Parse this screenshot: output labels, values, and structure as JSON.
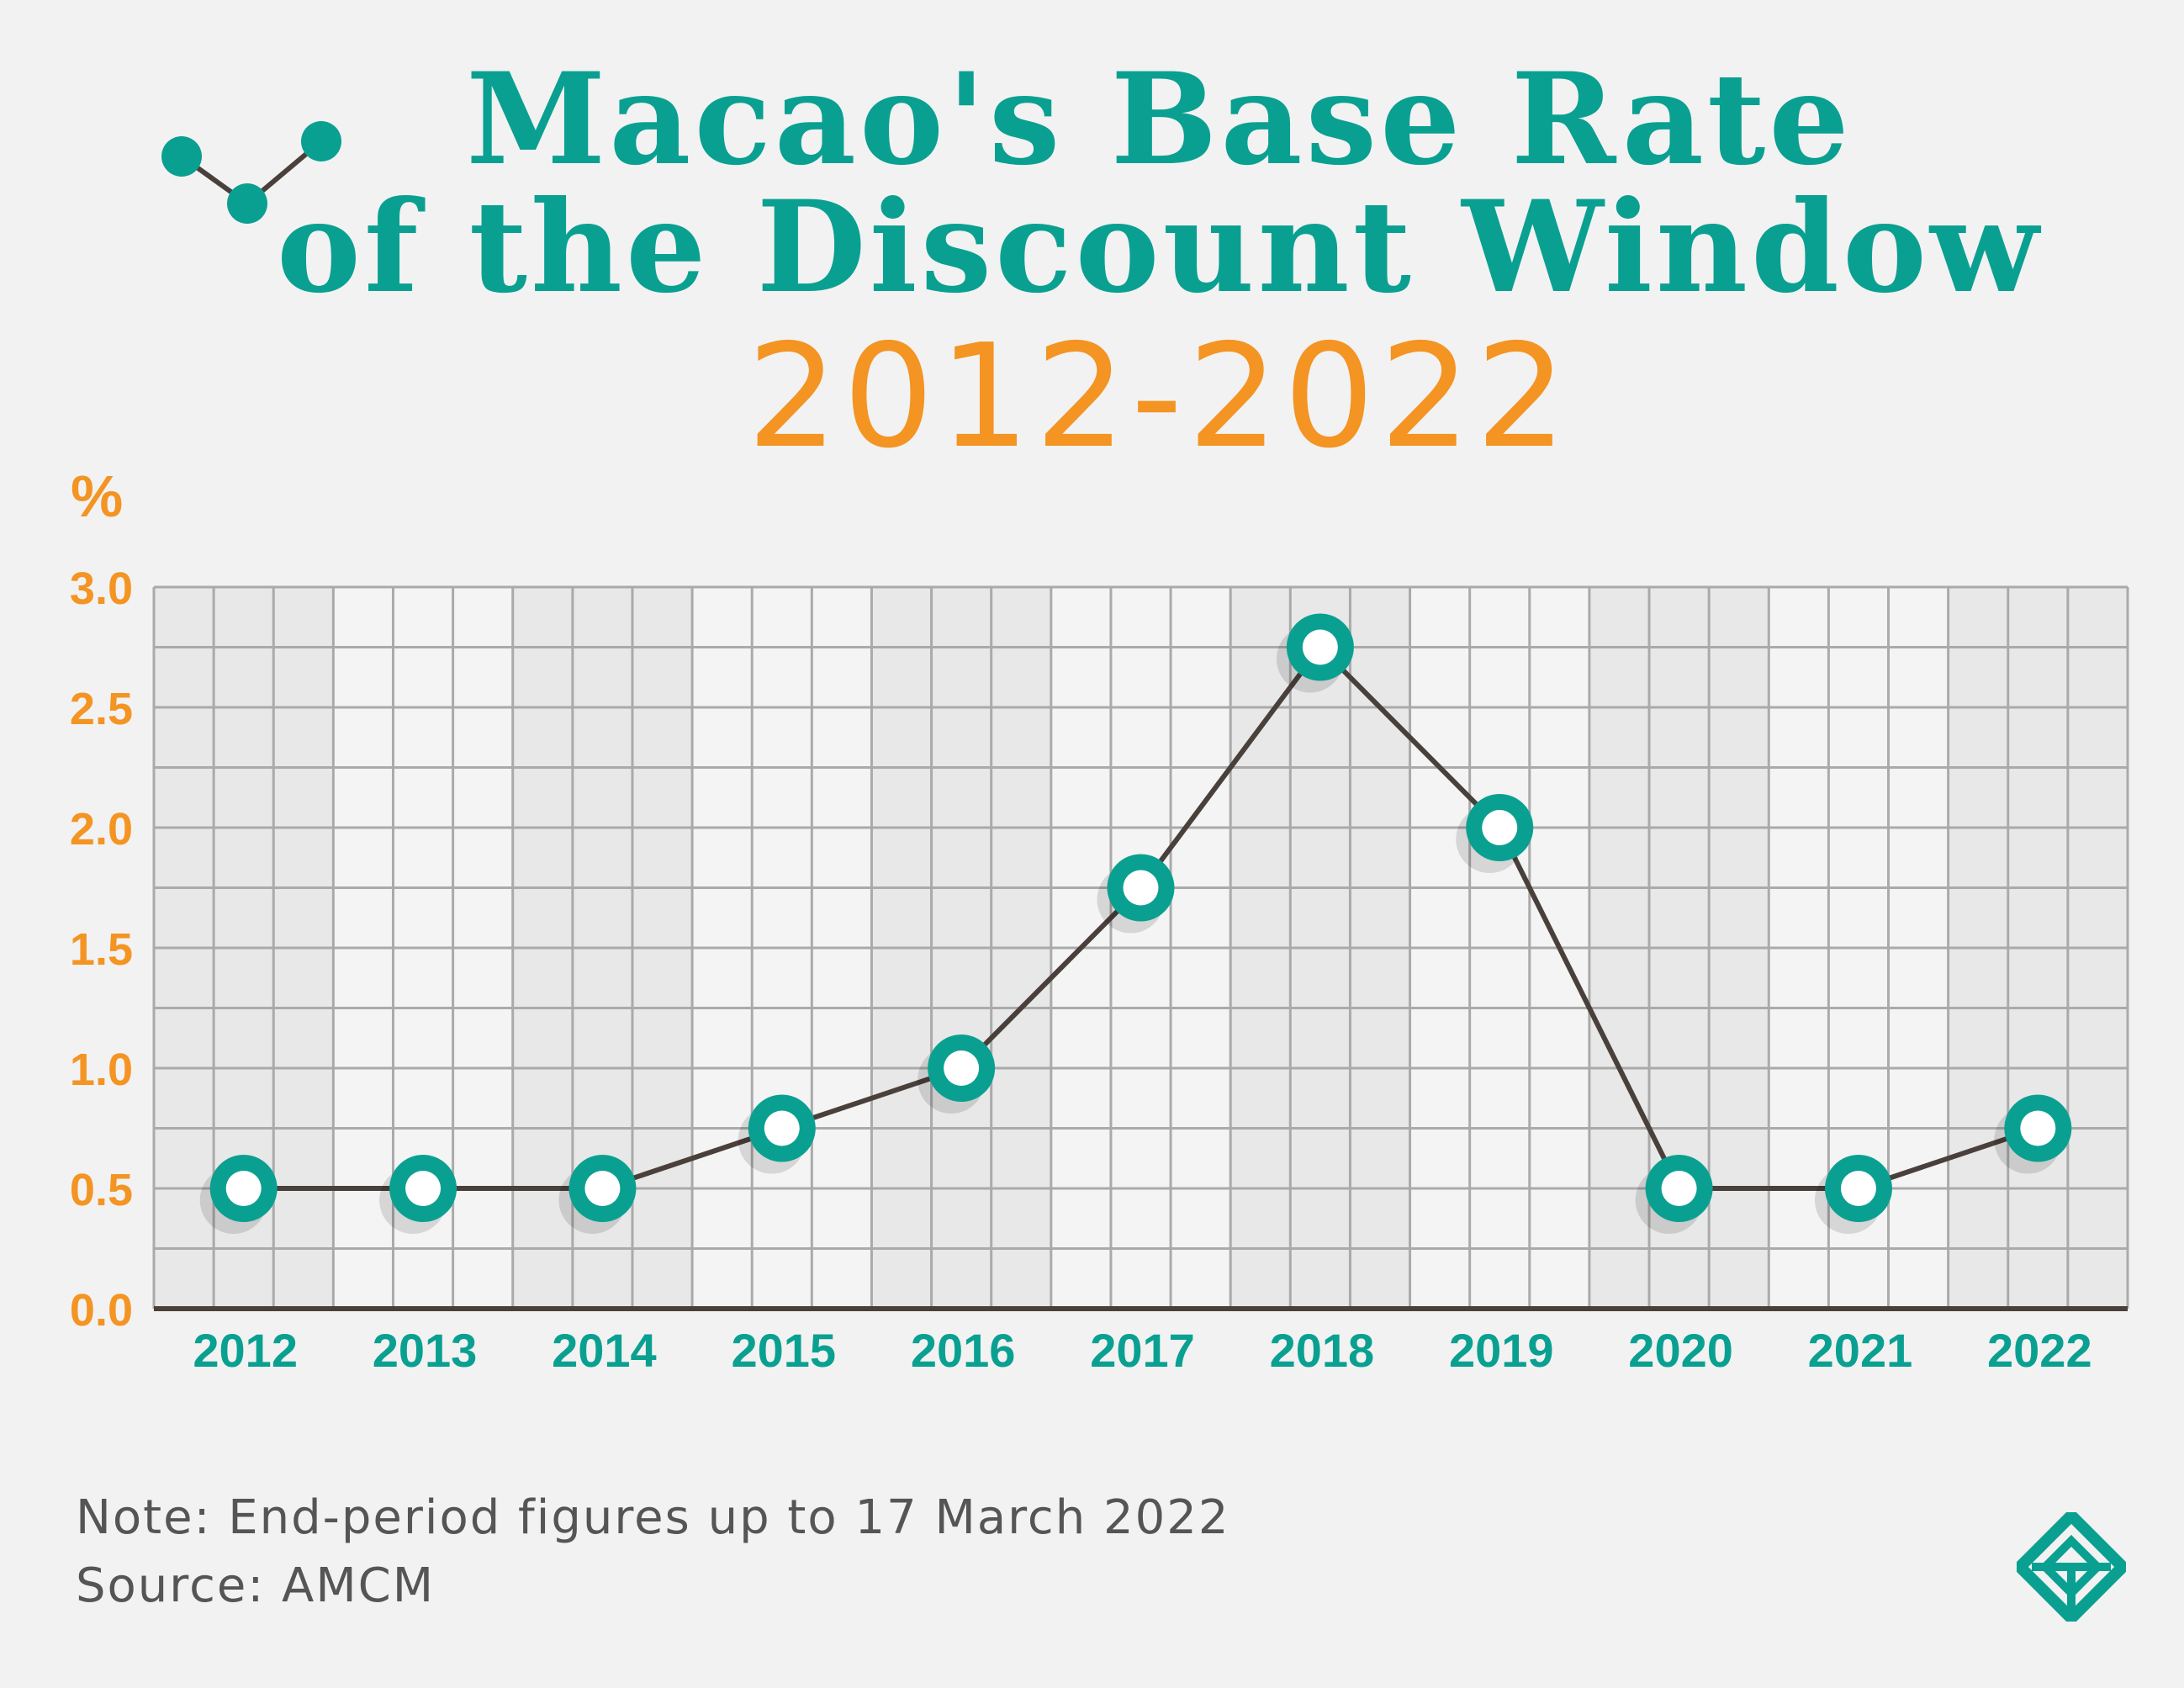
{
  "header": {
    "title_line1": "Macao's Base Rate",
    "title_line2": "of the Discount Window",
    "subtitle": "2012-2022",
    "icon": "line-chart-icon"
  },
  "colors": {
    "background": "#f2f2f2",
    "teal": "#0aa091",
    "orange": "#f39423",
    "line": "#4a403b",
    "grid": "#aaaaaa"
  },
  "chart_data": {
    "type": "line",
    "ylabel": "%",
    "xlabel": "",
    "categories": [
      "2012",
      "2013",
      "2014",
      "2015",
      "2016",
      "2017",
      "2018",
      "2019",
      "2020",
      "2021",
      "2022"
    ],
    "values": [
      0.5,
      0.5,
      0.5,
      0.75,
      1.0,
      1.75,
      2.75,
      2.0,
      0.5,
      0.5,
      0.75
    ],
    "ylim": [
      0,
      3.0
    ],
    "yticks": [
      "0.0",
      "0.5",
      "1.0",
      "1.5",
      "2.0",
      "2.5",
      "3.0"
    ],
    "grid": true
  },
  "footer": {
    "note": "Note: End-period figures up to 17 March 2022",
    "source": "Source: AMCM",
    "logo": "amcm-logo-icon"
  }
}
